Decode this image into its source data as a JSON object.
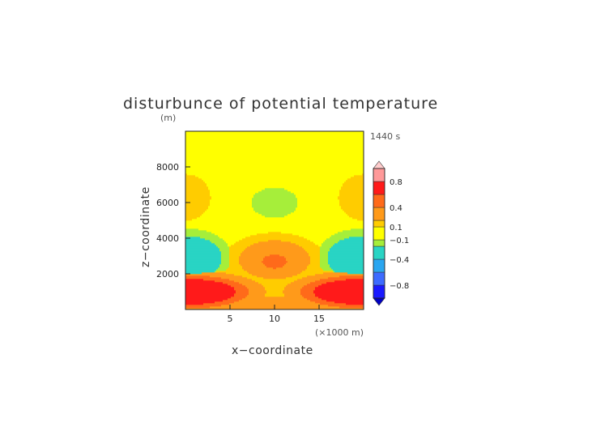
{
  "chart_data": {
    "type": "heatmap",
    "title": "disturbunce of potential temperature",
    "xlabel": "x−coordinate",
    "x_units": "(×1000 m)",
    "ylabel": "z−coordinate",
    "y_units": "(m)",
    "time_label": "1440 s",
    "xlim": [
      0,
      20
    ],
    "ylim": [
      0,
      10000
    ],
    "x_ticks": [
      5,
      10,
      15
    ],
    "x_tick_labels": [
      "5",
      "10",
      "15"
    ],
    "y_ticks": [
      2000,
      4000,
      6000,
      8000
    ],
    "y_tick_labels": [
      "2000",
      "4000",
      "6000",
      "8000"
    ],
    "colorbar": {
      "labels": [
        "0.8",
        "0.4",
        "0.1",
        "−0.1",
        "−0.4",
        "−0.8"
      ],
      "label_values": [
        0.8,
        0.4,
        0.1,
        -0.1,
        -0.4,
        -0.8
      ],
      "range": [
        -1.0,
        1.0
      ]
    },
    "features": [
      {
        "x": 10,
        "z": 6000,
        "rx": 2.8,
        "rz": 900,
        "value": -0.15
      },
      {
        "x": 0,
        "z": 6300,
        "rx": 3.5,
        "rz": 1600,
        "value": 0.12
      },
      {
        "x": 20,
        "z": 6300,
        "rx": 3.5,
        "rz": 1600,
        "value": 0.12
      },
      {
        "x": 10,
        "z": 2800,
        "rx": 4.8,
        "rz": 1300,
        "value": 0.25
      },
      {
        "x": 10,
        "z": 2700,
        "rx": 1.8,
        "rz": 500,
        "value": 0.45
      },
      {
        "x": 0.5,
        "z": 2900,
        "rx": 3.8,
        "rz": 1300,
        "value": -0.3
      },
      {
        "x": 19.5,
        "z": 2900,
        "rx": 3.8,
        "rz": 1300,
        "value": -0.3
      },
      {
        "x": 0.5,
        "z": 1000,
        "rx": 6.5,
        "rz": 900,
        "value": 0.7
      },
      {
        "x": 19.5,
        "z": 1000,
        "rx": 6.5,
        "rz": 900,
        "value": 0.7
      }
    ]
  }
}
